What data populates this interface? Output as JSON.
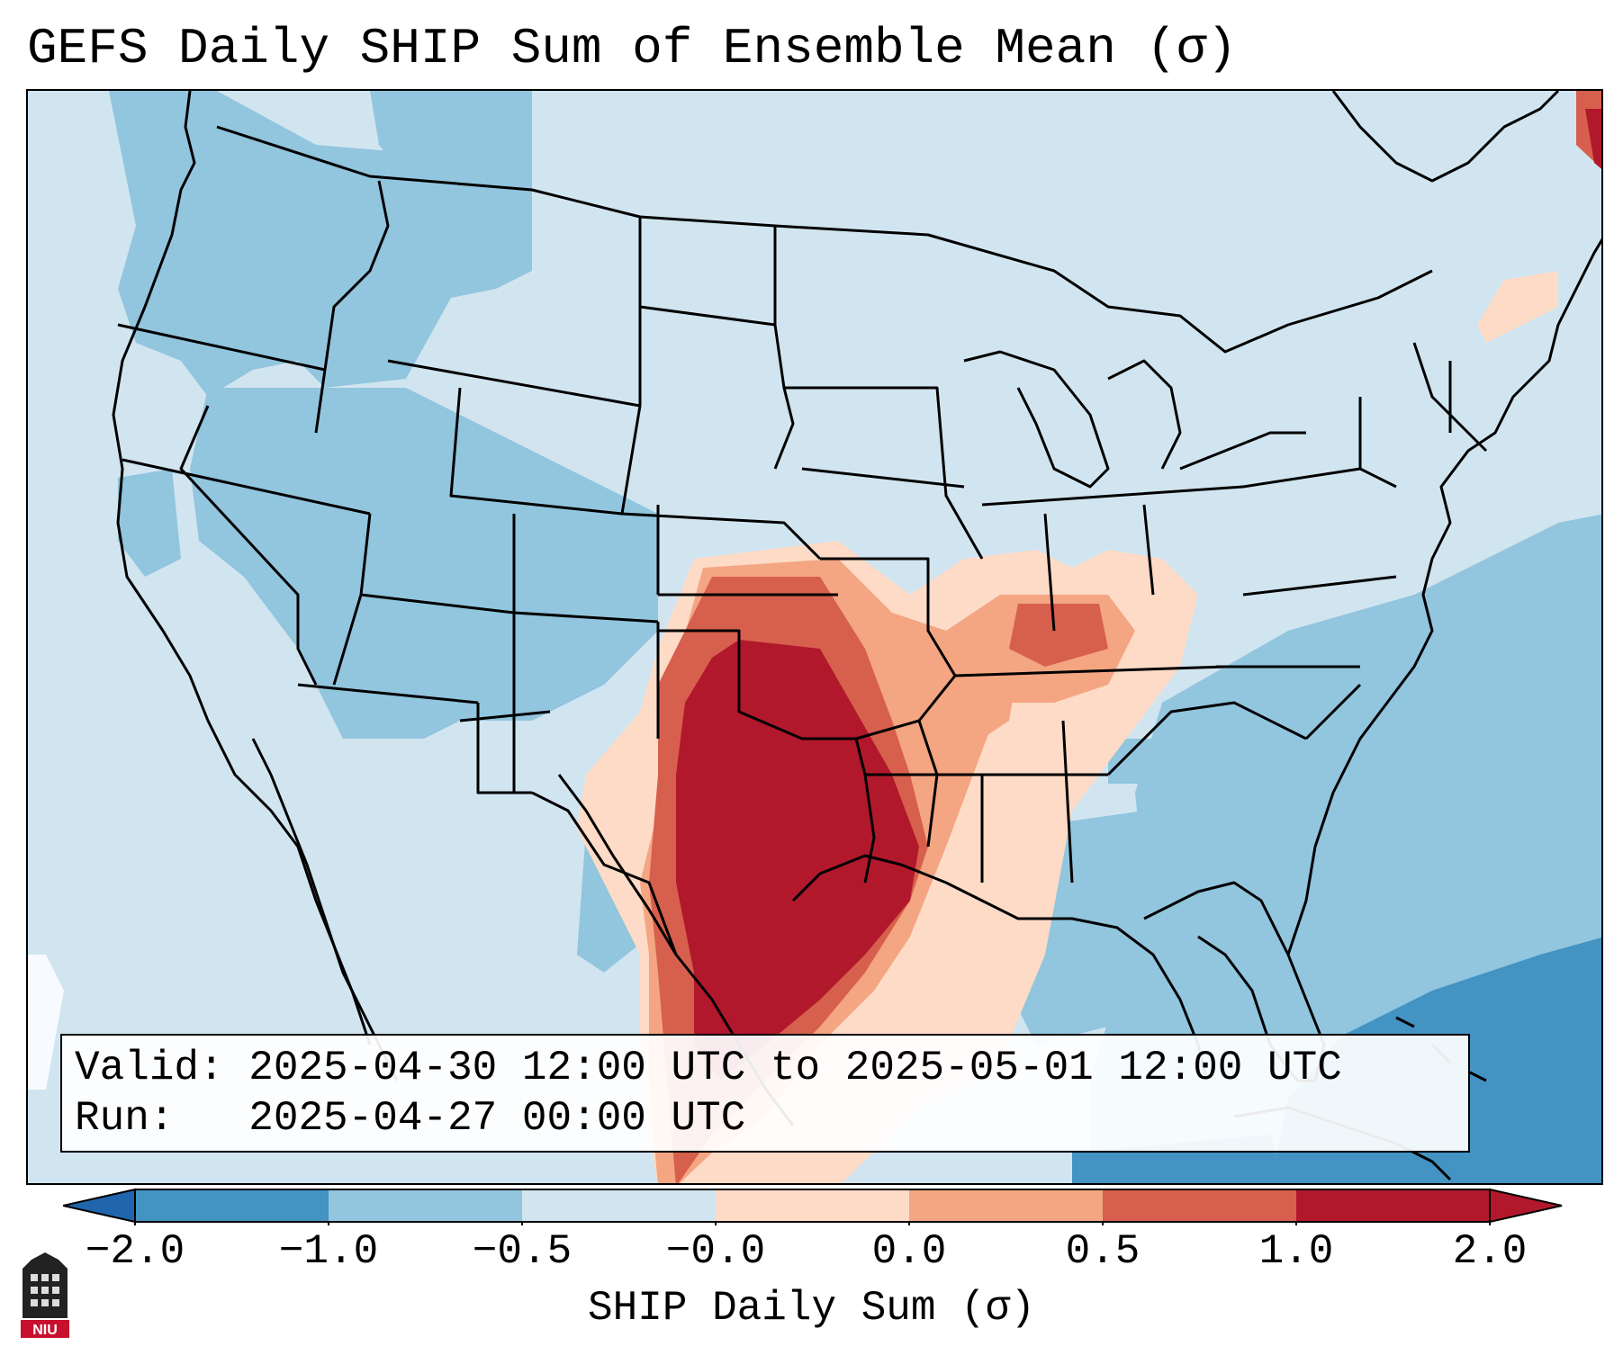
{
  "title": "GEFS Daily SHIP Sum of Ensemble Mean (σ)",
  "info": {
    "valid_line": "Valid: 2025-04-30 12:00 UTC to 2025-05-01 12:00 UTC",
    "run_line": "Run:   2025-04-27 00:00 UTC"
  },
  "colorbar": {
    "label": "SHIP Daily Sum (σ)",
    "ticks": [
      "−2.0",
      "−1.0",
      "−0.5",
      "−0.0",
      "0.0",
      "0.5",
      "1.0",
      "2.0"
    ],
    "colors": [
      "#2166ac",
      "#4393c3",
      "#92c5de",
      "#d1e5f0",
      "#fddbc7",
      "#f4a582",
      "#d6604d",
      "#b2182b"
    ],
    "extend": "both"
  },
  "logo": {
    "text": "NIU"
  },
  "map": {
    "region": "Contiguous United States",
    "background_color": "#d1e5f0",
    "max_anomaly_region": "Texas / Oklahoma / southern Plains"
  }
}
